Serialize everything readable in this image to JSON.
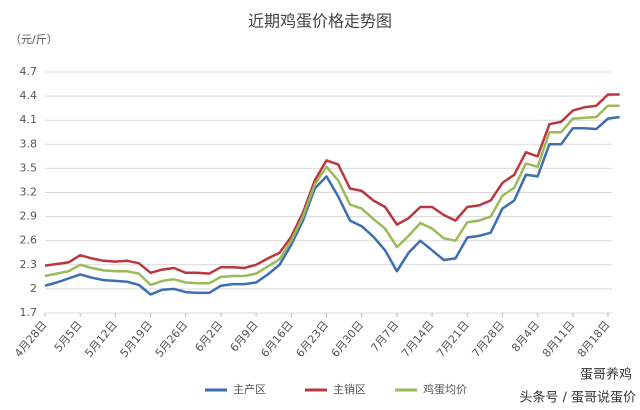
{
  "chart_data": {
    "type": "line",
    "title": "近期鸡蛋价格走势图",
    "y_label": "（元/斤）",
    "categories": [
      "4月28日",
      null,
      null,
      "5月5日",
      null,
      null,
      "5月12日",
      null,
      null,
      "5月19日",
      null,
      null,
      "5月26日",
      null,
      null,
      "6月2日",
      null,
      null,
      "6月9日",
      null,
      null,
      "6月16日",
      null,
      null,
      "6月23日",
      null,
      null,
      "6月30日",
      null,
      null,
      "7月7日",
      null,
      null,
      "7月14日",
      null,
      null,
      "7月21日",
      null,
      null,
      "7月28日",
      null,
      null,
      "8月4日",
      null,
      null,
      "8月11日",
      null,
      null,
      "8月18日",
      null
    ],
    "series": [
      {
        "name": "主产区",
        "color": "#3b6fb0",
        "values": [
          2.04,
          2.08,
          2.13,
          2.18,
          2.14,
          2.11,
          2.1,
          2.09,
          2.05,
          1.93,
          1.99,
          2.0,
          1.96,
          1.95,
          1.95,
          2.04,
          2.06,
          2.06,
          2.08,
          2.18,
          2.3,
          2.55,
          2.85,
          3.25,
          3.4,
          3.15,
          2.85,
          2.78,
          2.65,
          2.48,
          2.22,
          2.45,
          2.6,
          2.48,
          2.36,
          2.38,
          2.64,
          2.66,
          2.7,
          3.0,
          3.1,
          3.42,
          3.4,
          3.8,
          3.8,
          4.0,
          4.0,
          3.99,
          4.12,
          4.14
        ]
      },
      {
        "name": "主销区",
        "color": "#b9383f",
        "values": [
          2.29,
          2.31,
          2.33,
          2.42,
          2.38,
          2.35,
          2.34,
          2.35,
          2.32,
          2.2,
          2.24,
          2.26,
          2.2,
          2.2,
          2.19,
          2.27,
          2.27,
          2.26,
          2.3,
          2.38,
          2.45,
          2.65,
          2.95,
          3.35,
          3.6,
          3.55,
          3.25,
          3.22,
          3.1,
          3.02,
          2.8,
          2.88,
          3.02,
          3.02,
          2.92,
          2.85,
          3.02,
          3.04,
          3.1,
          3.32,
          3.42,
          3.7,
          3.65,
          4.05,
          4.08,
          4.22,
          4.26,
          4.28,
          4.42,
          4.42
        ]
      },
      {
        "name": "鸡蛋均价",
        "color": "#9bbb59",
        "values": [
          2.16,
          2.19,
          2.22,
          2.3,
          2.26,
          2.23,
          2.22,
          2.22,
          2.19,
          2.05,
          2.1,
          2.12,
          2.08,
          2.07,
          2.07,
          2.15,
          2.16,
          2.16,
          2.19,
          2.28,
          2.37,
          2.6,
          2.9,
          3.3,
          3.52,
          3.35,
          3.05,
          3.0,
          2.87,
          2.75,
          2.52,
          2.66,
          2.82,
          2.75,
          2.63,
          2.6,
          2.83,
          2.85,
          2.9,
          3.16,
          3.26,
          3.56,
          3.52,
          3.95,
          3.95,
          4.12,
          4.13,
          4.14,
          4.28,
          4.28
        ]
      }
    ],
    "ylim": [
      1.7,
      4.7
    ],
    "yticks": [
      1.7,
      2,
      2.3,
      2.6,
      2.9,
      3.2,
      3.5,
      3.8,
      4.1,
      4.4,
      4.7
    ],
    "grid": true,
    "legend": "bottom",
    "watermark": [
      "蛋哥养鸡",
      "头条号 / 蛋哥说蛋价"
    ]
  }
}
